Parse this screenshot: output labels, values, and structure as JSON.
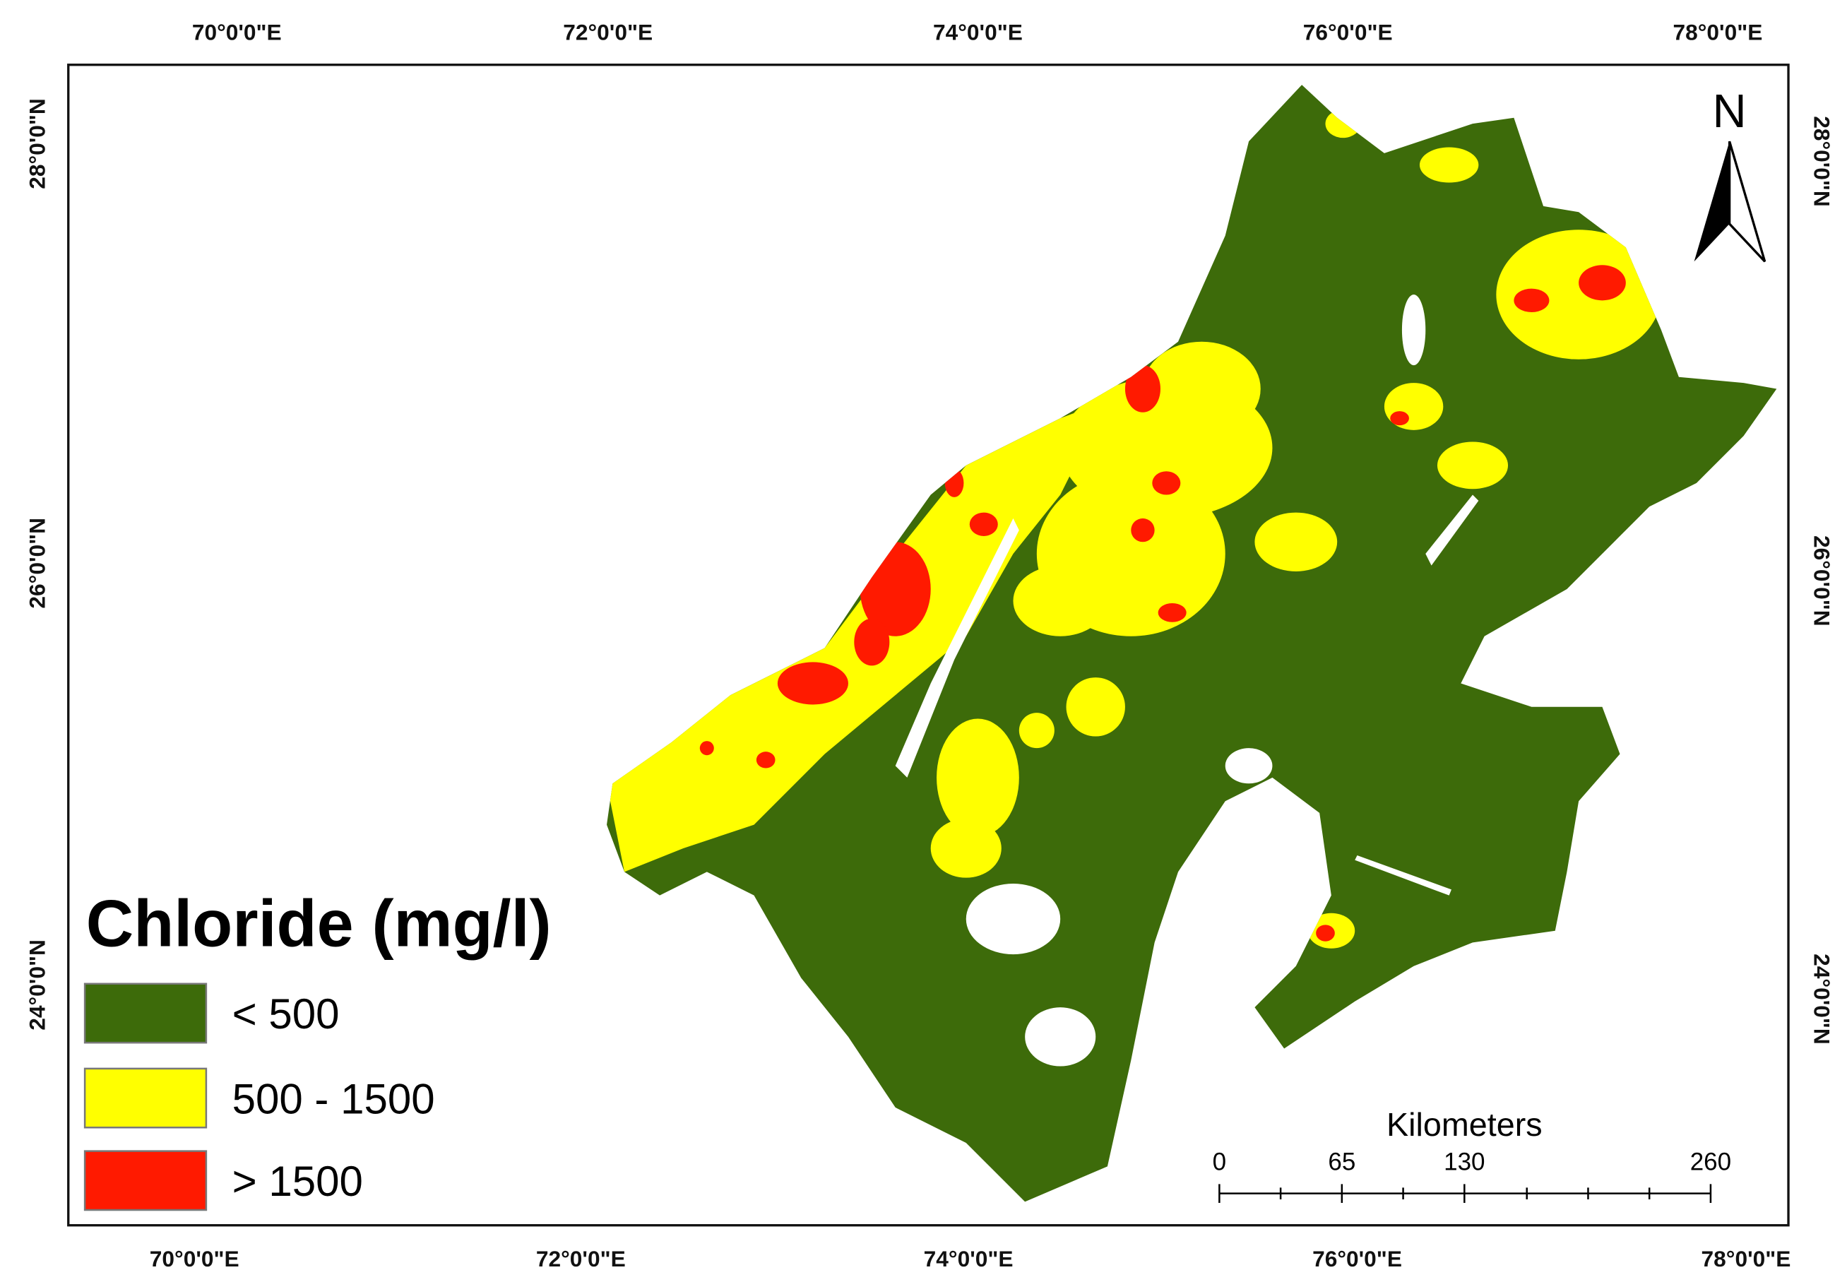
{
  "map": {
    "top_labels": [
      "70°0'0\"E",
      "72°0'0\"E",
      "74°0'0\"E",
      "76°0'0\"E",
      "78°0'0\"E"
    ],
    "bottom_labels": [
      "70°0'0\"E",
      "72°0'0\"E",
      "74°0'0\"E",
      "76°0'0\"E",
      "78°0'0\"E"
    ],
    "left_labels": [
      "28°0'0\"N",
      "26°0'0\"N",
      "24°0'0\"N"
    ],
    "right_labels": [
      "28°0'0\"N",
      "26°0'0\"N",
      "24°0'0\"N"
    ],
    "north": "N",
    "legend": {
      "title": "Chloride (mg/l)",
      "items": [
        {
          "label": "< 500",
          "color": "#3d6b0a"
        },
        {
          "label": "500 - 1500",
          "color": "#ffff00"
        },
        {
          "label": "> 1500",
          "color": "#ff1a00"
        }
      ]
    },
    "scale_bar": {
      "title": "Kilometers",
      "labels": [
        "0",
        "65",
        "130",
        "260"
      ]
    }
  }
}
